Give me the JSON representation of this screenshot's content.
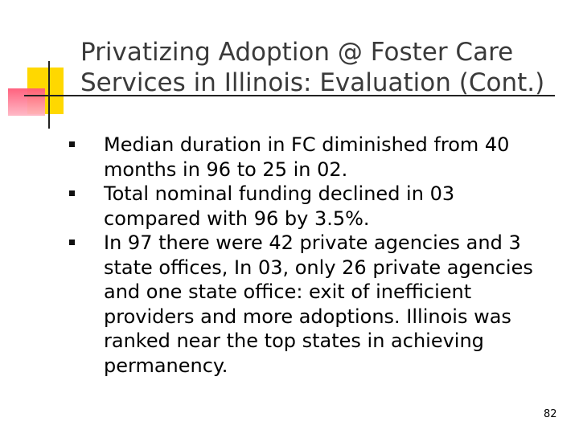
{
  "slide": {
    "title": "Privatizing Adoption @ Foster Care Services in Illinois: Evaluation (Cont.)",
    "bullets": [
      "Median duration in FC diminished from 40 months in 96 to 25 in 02.",
      "Total nominal funding declined in 03 compared with 96 by 3.5%.",
      "In 97 there were 42 private agencies and 3 state offices, In 03, only 26 private agencies and one state office: exit of inefficient providers and more adoptions.  Illinois was ranked near the top states in achieving permanency."
    ],
    "page_number": "82"
  },
  "colors": {
    "title": "#3a3a3a",
    "accent_yellow": "#ffd800",
    "accent_pink": "#ff5a78"
  }
}
